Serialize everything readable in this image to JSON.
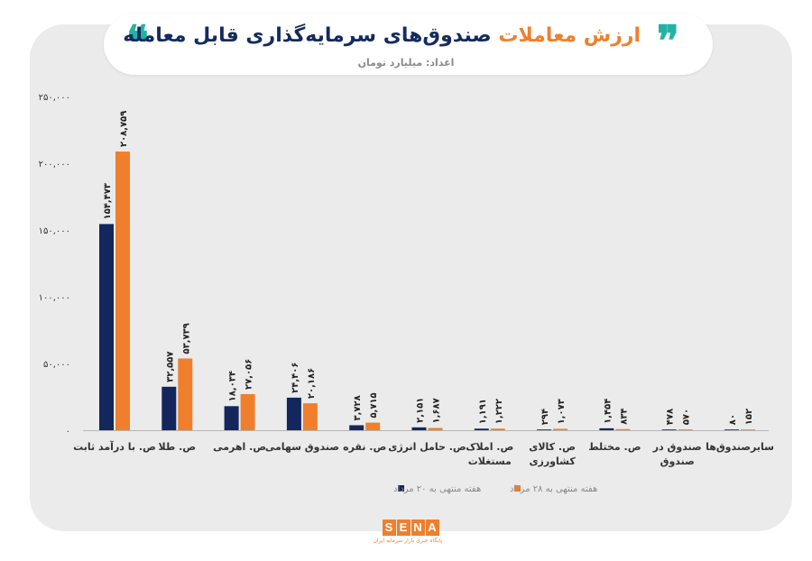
{
  "header": {
    "title_part1": "ارزش معاملات",
    "title_part2": "صندوق‌های سرمایه‌گذاری قابل معامله",
    "subtitle": "اعداد: میلیارد تومان",
    "quote_open": "❞",
    "quote_close": "❝"
  },
  "brand": {
    "letters": [
      "S",
      "E",
      "N",
      "A"
    ],
    "tagline": "پایگاه خبری بازار سرمایه ایران",
    "color": "#ef7f2d"
  },
  "colors": {
    "series1": "#13275c",
    "series2": "#ef7f2d",
    "accent": "#22b3a4"
  },
  "chart_data": {
    "type": "bar",
    "ylim": [
      0,
      250000
    ],
    "yticks": [
      0,
      50000,
      100000,
      150000,
      200000,
      250000
    ],
    "ytick_labels": [
      "۰",
      "۵۰,۰۰۰",
      "۱۰۰,۰۰۰",
      "۱۵۰,۰۰۰",
      "۲۰۰,۰۰۰",
      "۲۵۰,۰۰۰"
    ],
    "grid": false,
    "legend_position": "bottom",
    "categories": [
      [
        "ص. با درآمد ثابت"
      ],
      [
        "ص. طلا"
      ],
      [
        "ص. اهرمی"
      ],
      [
        "صندوق سهامی"
      ],
      [
        "ص. نقره"
      ],
      [
        "ص. حامل انرژی"
      ],
      [
        "ص. املاک",
        "مستغلات"
      ],
      [
        "ص. کالای",
        "کشاورزی"
      ],
      [
        "ص. مختلط"
      ],
      [
        "صندوق در",
        "صندوق"
      ],
      [
        "سایرصندوق‌ها"
      ]
    ],
    "series": [
      {
        "name": "هفته منتهی به ۲۰ مرداد",
        "values": [
          154473,
          32557,
          18034,
          24406,
          3728,
          2151,
          1191,
          294,
          1454,
          478,
          80
        ],
        "labels": [
          "۱۵۴,۴۷۳",
          "۳۲,۵۵۷",
          "۱۸,۰۳۴",
          "۲۴,۴۰۶",
          "۳,۷۲۸",
          "۲,۱۵۱",
          "۱,۱۹۱",
          "۲۹۴",
          "۱,۴۵۴",
          "۴۷۸",
          "۸۰"
        ]
      },
      {
        "name": "هفته منتهی به ۲۸ مرداد",
        "values": [
          208759,
          53739,
          27056,
          20186,
          5715,
          1687,
          1222,
          1073,
          834,
          570,
          152
        ],
        "labels": [
          "۲۰۸,۷۵۹",
          "۵۳,۷۳۹",
          "۲۷,۰۵۶",
          "۲۰,۱۸۶",
          "۵,۷۱۵",
          "۱,۶۸۷",
          "۱,۲۲۲",
          "۱,۰۷۳",
          "۸۳۴",
          "۵۷۰",
          "۱۵۲"
        ]
      }
    ]
  }
}
